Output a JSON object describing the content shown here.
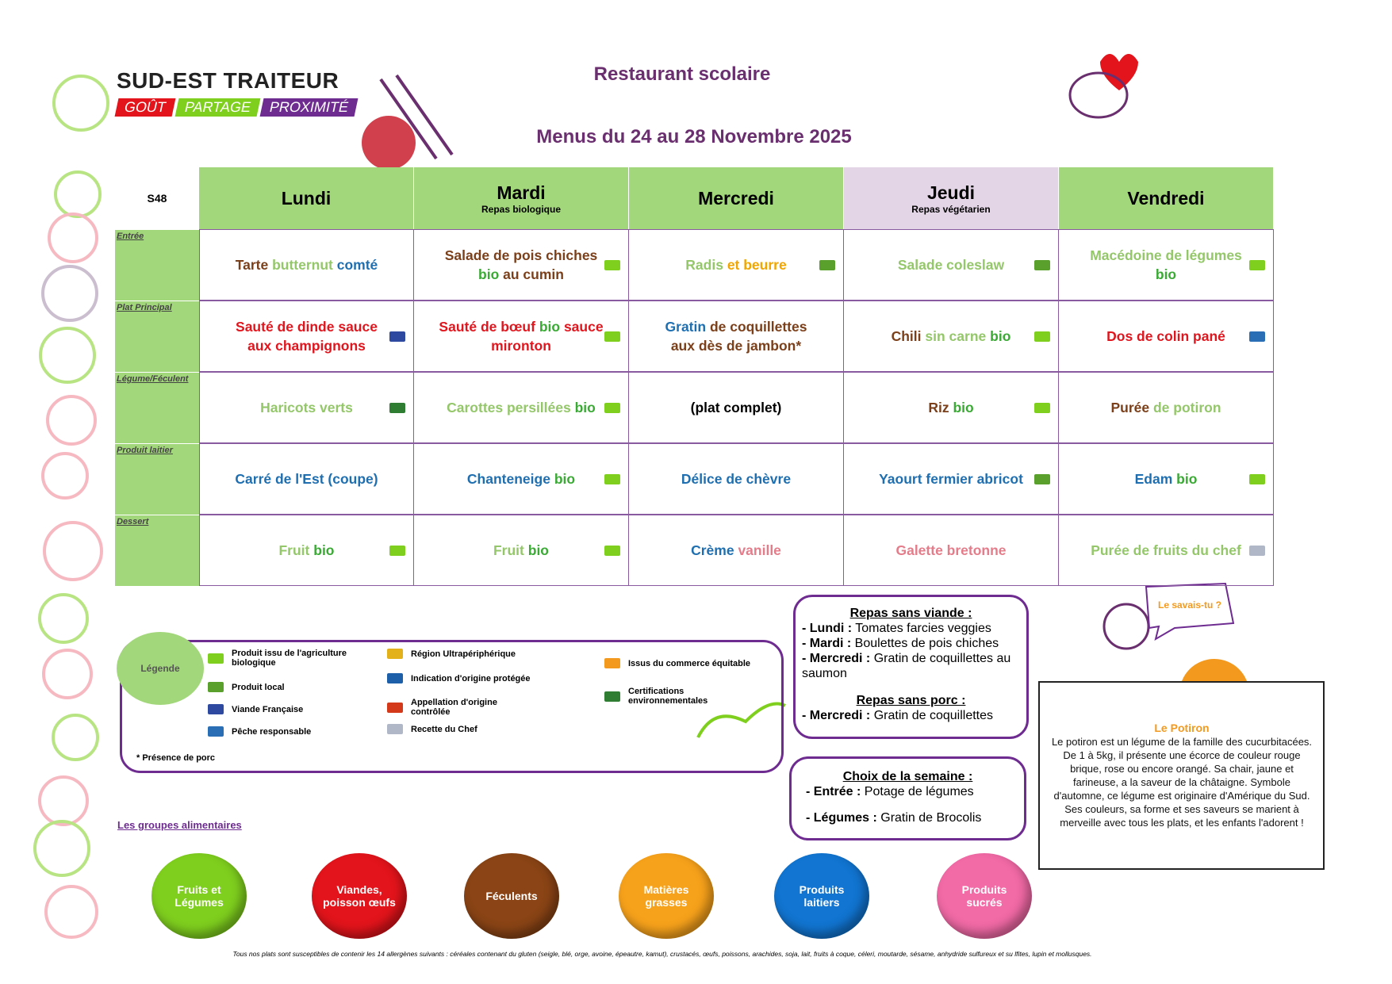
{
  "header": {
    "brand": "SUD-EST TRAITEUR",
    "tagline": [
      "GOÛT",
      "PARTAGE",
      "PROXIMITÉ"
    ],
    "title": "Restaurant scolaire",
    "subtitle": "Menus du 24 au 28 Novembre 2025"
  },
  "table": {
    "week": "S48",
    "days": [
      {
        "name": "Lundi",
        "bg": "#a3d77b"
      },
      {
        "name": "Mardi",
        "note": "Repas biologique",
        "bg": "#a3d77b"
      },
      {
        "name": "Mercredi",
        "bg": "#a3d77b"
      },
      {
        "name": "Jeudi",
        "note": "Repas  végétarien",
        "bg": "#e3d4e6"
      },
      {
        "name": "Vendredi",
        "bg": "#a3d77b"
      }
    ],
    "rows": [
      {
        "label": "Entrée",
        "cells": [
          {
            "parts": [
              {
                "t": "Tarte",
                "c": "#7b3f1a"
              },
              {
                "t": "butternut",
                "c": "#94c76a"
              },
              {
                "t": "comté",
                "c": "#1f6fb0"
              }
            ]
          },
          {
            "parts": [
              {
                "t": "Salade de pois chiches",
                "c": "#7b3f1a"
              },
              {
                "t": "bio",
                "c": "#3aaa35"
              },
              {
                "t": "au cumin",
                "c": "#7b3f1a"
              }
            ],
            "icon": "bio"
          },
          {
            "parts": [
              {
                "t": "Radis",
                "c": "#94c76a"
              },
              {
                "t": "et beurre",
                "c": "#f0a500"
              }
            ],
            "icon": "local"
          },
          {
            "parts": [
              {
                "t": "Salade coleslaw",
                "c": "#94c76a"
              }
            ],
            "icon": "local"
          },
          {
            "parts": [
              {
                "t": "Macédoine de légumes",
                "c": "#94c76a"
              },
              {
                "t": "bio",
                "c": "#3aaa35"
              }
            ],
            "icon": "bio"
          }
        ]
      },
      {
        "label": "Plat Principal",
        "cells": [
          {
            "parts": [
              {
                "t": "Sauté de dinde sauce aux champignons",
                "c": "#e0161e"
              }
            ],
            "icon": "vf"
          },
          {
            "parts": [
              {
                "t": "Sauté de bœuf",
                "c": "#e0161e"
              },
              {
                "t": "bio",
                "c": "#3aaa35"
              },
              {
                "t": "sauce mironton",
                "c": "#e0161e"
              }
            ],
            "icon": "bio"
          },
          {
            "parts": [
              {
                "t": "Gratin",
                "c": "#1f6fb0"
              },
              {
                "t": "de coquillettes aux dès de jambon*",
                "c": "#7b3f1a"
              }
            ]
          },
          {
            "parts": [
              {
                "t": "Chili",
                "c": "#7b3f1a"
              },
              {
                "t": "sin carne",
                "c": "#94c76a"
              },
              {
                "t": "bio",
                "c": "#3aaa35"
              }
            ],
            "icon": "bio"
          },
          {
            "parts": [
              {
                "t": "Dos de colin pané",
                "c": "#e0161e"
              }
            ],
            "icon": "peche"
          }
        ]
      },
      {
        "label": "Légume/Féculent",
        "cells": [
          {
            "parts": [
              {
                "t": "Haricots verts",
                "c": "#94c76a"
              }
            ],
            "icon": "env"
          },
          {
            "parts": [
              {
                "t": "Carottes persillées",
                "c": "#94c76a"
              },
              {
                "t": "bio",
                "c": "#3aaa35"
              }
            ],
            "icon": "bio"
          },
          {
            "parts": [
              {
                "t": "(plat complet)",
                "c": "#000000"
              }
            ]
          },
          {
            "parts": [
              {
                "t": "Riz",
                "c": "#7b3f1a"
              },
              {
                "t": "bio",
                "c": "#3aaa35"
              }
            ],
            "icon": "bio"
          },
          {
            "parts": [
              {
                "t": "Purée",
                "c": "#7b3f1a"
              },
              {
                "t": "de potiron",
                "c": "#94c76a"
              }
            ]
          }
        ]
      },
      {
        "label": "Produit laitier",
        "cells": [
          {
            "parts": [
              {
                "t": "Carré de l'Est (coupe)",
                "c": "#1f6fb0"
              }
            ]
          },
          {
            "parts": [
              {
                "t": "Chanteneige",
                "c": "#1f6fb0"
              },
              {
                "t": "bio",
                "c": "#3aaa35"
              }
            ],
            "icon": "bio"
          },
          {
            "parts": [
              {
                "t": "Délice de chèvre",
                "c": "#1f6fb0"
              }
            ]
          },
          {
            "parts": [
              {
                "t": "Yaourt fermier abricot",
                "c": "#1f6fb0"
              }
            ],
            "icon": "local"
          },
          {
            "parts": [
              {
                "t": "Edam",
                "c": "#1f6fb0"
              },
              {
                "t": "bio",
                "c": "#3aaa35"
              }
            ],
            "icon": "bio"
          }
        ]
      },
      {
        "label": "Dessert",
        "cells": [
          {
            "parts": [
              {
                "t": "Fruit",
                "c": "#94c76a"
              },
              {
                "t": "bio",
                "c": "#3aaa35"
              }
            ],
            "icon": "bio"
          },
          {
            "parts": [
              {
                "t": "Fruit",
                "c": "#94c76a"
              },
              {
                "t": "bio",
                "c": "#3aaa35"
              }
            ],
            "icon": "bio"
          },
          {
            "parts": [
              {
                "t": "Crème",
                "c": "#1f6fb0"
              },
              {
                "t": "vanille",
                "c": "#e47c8a"
              }
            ]
          },
          {
            "parts": [
              {
                "t": "Galette bretonne",
                "c": "#e47c8a"
              }
            ]
          },
          {
            "parts": [
              {
                "t": "Purée de fruits  du chef",
                "c": "#94c76a"
              }
            ],
            "icon": "chef"
          }
        ]
      }
    ]
  },
  "legend": {
    "title": "Légende",
    "items": [
      {
        "text": "Produit issu de l'agriculture biologique",
        "icon": "bio"
      },
      {
        "text": "Produit local",
        "icon": "local"
      },
      {
        "text": "Viande Française",
        "icon": "vf"
      },
      {
        "text": "Pêche responsable",
        "icon": "peche"
      },
      {
        "text": "Région Ultrapériphérique",
        "icon": "rup"
      },
      {
        "text": "Indication d'origine protégée",
        "icon": "igp"
      },
      {
        "text": "Appellation d'origine contrôlée",
        "icon": "aoc"
      },
      {
        "text": "Recette du Chef",
        "icon": "chef"
      },
      {
        "text": "Issus du commerce équitable",
        "icon": "equi"
      },
      {
        "text": "Certifications environnementales",
        "icon": "env"
      }
    ],
    "note": "* Présence de porc"
  },
  "sans_viande": {
    "title": "Repas sans viande :",
    "lines": [
      {
        "day": "- Lundi :",
        "dish": "Tomates farcies veggies"
      },
      {
        "day": "- Mardi :",
        "dish": "Boulettes de pois chiches"
      },
      {
        "day": "- Mercredi :",
        "dish": "Gratin de coquillettes au saumon"
      }
    ]
  },
  "sans_porc": {
    "title": "Repas sans porc :",
    "lines": [
      {
        "day": "- Mercredi :",
        "dish": "Gratin de coquillettes"
      }
    ]
  },
  "choix": {
    "title": "Choix de la semaine :",
    "lines": [
      {
        "day": "- Entrée :",
        "dish": "Potage de légumes"
      },
      {
        "day": "- Légumes :",
        "dish": "Gratin de Brocolis"
      }
    ]
  },
  "savais": {
    "bubble": "Le savais-tu ?",
    "title": "Le Potiron",
    "text": "Le potiron est un légume de la famille des cucurbitacées. De 1 à 5kg, il présente une écorce de couleur rouge brique, rose ou encore orangé. Sa chair, jaune et farineuse, a la saveur de la châtaigne. Symbole d'automne, ce légume est originaire d'Amérique du Sud. Ses couleurs, sa forme et ses saveurs se marient à merveille avec tous les plats, et les enfants l'adorent !"
  },
  "groups": {
    "title": "Les groupes alimentaires",
    "items": [
      {
        "name": "Fruits et Légumes",
        "color": "#7fcf1e"
      },
      {
        "name": "Viandes, poisson œufs",
        "color": "#e3141b"
      },
      {
        "name": "Féculents",
        "color": "#8a4415"
      },
      {
        "name": "Matières grasses",
        "color": "#f7a21b"
      },
      {
        "name": "Produits laitiers",
        "color": "#1175d1"
      },
      {
        "name": "Produits sucrés",
        "color": "#f26aa6"
      }
    ]
  },
  "footer": "Tous nos plats sont susceptibles de contenir les 14 allergènes suivants : céréales contenant du gluten (seigle, blé, orge, avoine, épeautre, kamut), crustacés, œufs, poissons, arachides, soja, lait, fruits à coque, céleri, moutarde, sésame, anhydride sulfureux et su lfites, lupin et mollusques."
}
